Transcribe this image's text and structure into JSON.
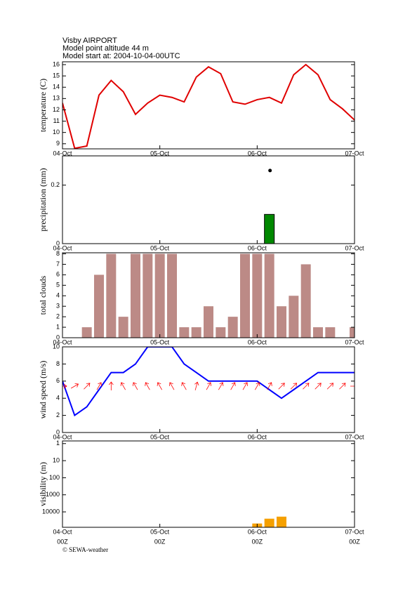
{
  "title_lines": [
    "Visby AIRPORT",
    "Model point altitude  44 m",
    "Model start at: 2004-10-04-00UTC"
  ],
  "copyright": "© SEWA-weather",
  "time": {
    "x": [
      0,
      3,
      6,
      9,
      12,
      15,
      18,
      21,
      24,
      27,
      30,
      33,
      36,
      39,
      42,
      45,
      48,
      51,
      54,
      57,
      60,
      63,
      66,
      69,
      72
    ],
    "xlim": [
      0,
      72
    ],
    "xticks": [
      {
        "value": 0,
        "label": "04-Oct"
      },
      {
        "value": 24,
        "label": "05-Oct"
      },
      {
        "value": 48,
        "label": "06-Oct"
      },
      {
        "value": 72,
        "label": "07-Oct"
      }
    ],
    "hour_labels": [
      "00Z",
      "00Z",
      "00Z",
      "00Z"
    ]
  },
  "chart_data": [
    {
      "type": "line",
      "ylabel": "temperature (C)",
      "color": "#e00000",
      "values": [
        12.6,
        8.6,
        8.8,
        13.3,
        14.6,
        13.6,
        11.6,
        12.6,
        13.3,
        13.1,
        12.7,
        14.9,
        15.8,
        15.2,
        12.7,
        12.5,
        12.9,
        13.1,
        12.6,
        15.1,
        16.0,
        15.1,
        12.9,
        12.1,
        11.1
      ],
      "ylim": [
        8.55,
        16.25
      ],
      "yticks": [
        9,
        10,
        11,
        12,
        13,
        14,
        15,
        16
      ]
    },
    {
      "type": "bar",
      "ylabel": "precipitation (mm)",
      "color": "#008800",
      "edgecolor": "#000000",
      "values": [
        null,
        null,
        null,
        null,
        null,
        null,
        null,
        null,
        null,
        null,
        null,
        null,
        null,
        null,
        null,
        null,
        null,
        0.1,
        null,
        null,
        null,
        null,
        null,
        null,
        null
      ],
      "markers": [
        null,
        null,
        null,
        null,
        null,
        null,
        null,
        null,
        null,
        null,
        null,
        null,
        null,
        null,
        null,
        null,
        null,
        0.25,
        null,
        null,
        null,
        null,
        null,
        null,
        null
      ],
      "ylim": [
        0,
        0.3
      ],
      "yticks": [
        0,
        0.2
      ]
    },
    {
      "type": "bar",
      "ylabel": "total clouds",
      "color": "#bc8a86",
      "values": [
        0,
        0,
        1,
        6,
        8,
        2,
        8,
        8,
        8,
        8,
        1,
        1,
        3,
        1,
        2,
        8,
        8,
        8,
        3,
        4,
        7,
        1,
        1,
        0,
        1
      ],
      "ylim": [
        0,
        8.1
      ],
      "yticks": [
        0,
        1,
        2,
        3,
        4,
        5,
        6,
        7,
        8
      ]
    },
    {
      "type": "line",
      "ylabel": "wind speed (m/s)",
      "color": "#0000ff",
      "values": [
        6,
        2,
        3,
        5,
        7,
        7,
        8,
        10,
        10,
        10,
        8,
        7,
        6,
        6,
        6,
        6,
        6,
        5,
        4,
        5,
        6,
        7,
        7,
        7,
        7
      ],
      "arrow_color": "#ff0000",
      "directions": [
        90,
        60,
        45,
        30,
        0,
        330,
        330,
        330,
        330,
        330,
        330,
        15,
        30,
        30,
        30,
        30,
        30,
        30,
        45,
        45,
        45,
        45,
        45,
        45,
        90
      ],
      "ylim": [
        0,
        10
      ],
      "yticks": [
        0,
        2,
        4,
        6,
        8,
        10
      ]
    },
    {
      "type": "bar",
      "ylabel": "visibility (m)",
      "color": "#f5a000",
      "log": true,
      "invert": true,
      "values": [
        null,
        null,
        null,
        null,
        null,
        null,
        null,
        null,
        null,
        null,
        null,
        null,
        null,
        null,
        null,
        null,
        48000,
        25000,
        19000,
        null,
        null,
        null,
        null,
        null,
        null
      ],
      "ylim": [
        0.7,
        80000
      ],
      "yticks": [
        1,
        10,
        100,
        1000,
        10000
      ]
    }
  ]
}
